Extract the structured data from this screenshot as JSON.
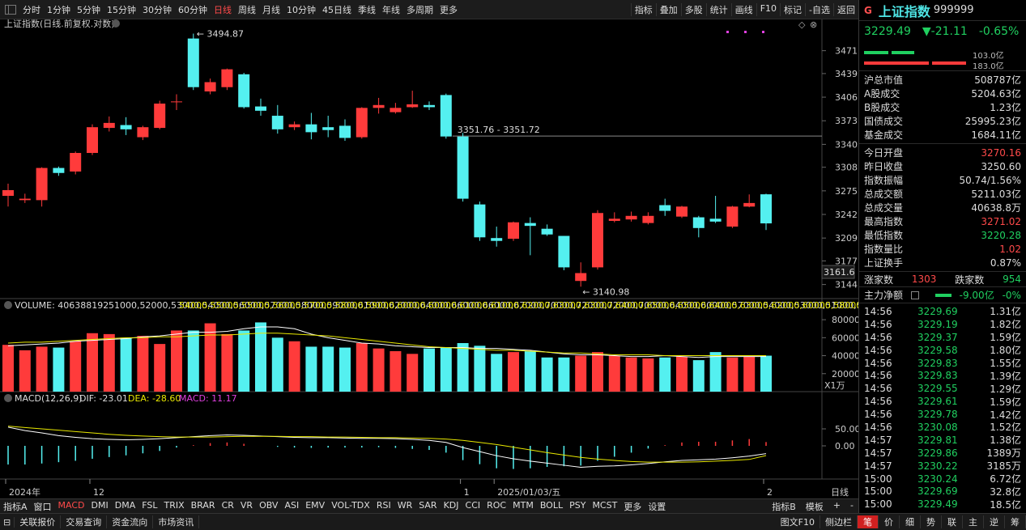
{
  "toolbar": {
    "periods": [
      "分时",
      "1分钟",
      "5分钟",
      "15分钟",
      "30分钟",
      "60分钟",
      "日线",
      "周线",
      "月线",
      "10分钟",
      "45日线",
      "季线",
      "年线",
      "多周期",
      "更多"
    ],
    "active": "日线",
    "right": [
      "指标",
      "叠加",
      "多股",
      "统计",
      "画线",
      "F10",
      "标记",
      "-自选",
      "返回"
    ]
  },
  "chart_title": "上证指数(日线.前复权.对数)",
  "right_panel": {
    "g": "G",
    "name": "上证指数",
    "code": "999999",
    "price": "3229.49",
    "change": "▼-21.11",
    "pct": "-0.65%",
    "bar1": "103.0亿",
    "bar2": "183.0亿",
    "stats": [
      {
        "k": "沪总市值",
        "v": "508787亿"
      },
      {
        "k": "A股成交",
        "v": "5204.63亿"
      },
      {
        "k": "B股成交",
        "v": "1.23亿"
      },
      {
        "k": "国债成交",
        "v": "25995.23亿"
      },
      {
        "k": "基金成交",
        "v": "1684.11亿"
      }
    ],
    "stats2": [
      {
        "k": "今日开盘",
        "v": "3270.16",
        "c": "#ff4a4a"
      },
      {
        "k": "昨日收盘",
        "v": "3250.60",
        "c": "#ddd"
      },
      {
        "k": "指数振幅",
        "v": "50.74/1.56%",
        "c": "#ddd"
      },
      {
        "k": "总成交额",
        "v": "5211.03亿",
        "c": "#ddd"
      },
      {
        "k": "总成交量",
        "v": "40638.8万",
        "c": "#ddd"
      },
      {
        "k": "最高指数",
        "v": "3271.02",
        "c": "#ff4a4a"
      },
      {
        "k": "最低指数",
        "v": "3220.28",
        "c": "#20d060"
      },
      {
        "k": "指数量比",
        "v": "1.02",
        "c": "#ff4a4a"
      },
      {
        "k": "上证换手",
        "v": "0.87%",
        "c": "#ddd"
      }
    ],
    "up_label": "涨家数",
    "up": "1303",
    "down_label": "跌家数",
    "down": "954",
    "flow_label": "主力净额",
    "flow": "-9.00亿",
    "flow_pct": "-0%",
    "ticks": [
      [
        "14:56",
        "3229.69",
        "1.31亿"
      ],
      [
        "14:56",
        "3229.19",
        "1.82亿"
      ],
      [
        "14:56",
        "3229.37",
        "1.59亿"
      ],
      [
        "14:56",
        "3229.58",
        "1.80亿"
      ],
      [
        "14:56",
        "3229.83",
        "1.55亿"
      ],
      [
        "14:56",
        "3229.83",
        "1.39亿"
      ],
      [
        "14:56",
        "3229.55",
        "1.29亿"
      ],
      [
        "14:56",
        "3229.61",
        "1.59亿"
      ],
      [
        "14:56",
        "3229.78",
        "1.42亿"
      ],
      [
        "14:56",
        "3230.08",
        "1.52亿"
      ],
      [
        "14:57",
        "3229.81",
        "1.38亿"
      ],
      [
        "14:57",
        "3229.86",
        "1389万"
      ],
      [
        "14:57",
        "3230.22",
        "3185万"
      ],
      [
        "15:00",
        "3230.24",
        "6.72亿"
      ],
      [
        "15:00",
        "3229.69",
        "32.8亿"
      ],
      [
        "15:00",
        "3229.49",
        "18.5亿"
      ]
    ]
  },
  "chart_data": {
    "type": "candlestick",
    "y_ticks": [
      "3471",
      "3439",
      "3406",
      "3373",
      "3340",
      "3308",
      "3275",
      "3242",
      "3209",
      "3177",
      "3144"
    ],
    "cur_label": "3161.6",
    "hline_label": "3351.76 - 3351.72",
    "annot_high": "3494.87",
    "annot_low": "3140.98",
    "candles": [
      [
        3268,
        3276,
        3253,
        3285
      ],
      [
        3262,
        3264,
        3258,
        3271
      ],
      [
        3262,
        3307,
        3253,
        3308
      ],
      [
        3307,
        3300,
        3296,
        3309
      ],
      [
        3302,
        3328,
        3298,
        3330
      ],
      [
        3328,
        3364,
        3325,
        3368
      ],
      [
        3363,
        3370,
        3358,
        3379
      ],
      [
        3367,
        3361,
        3353,
        3378
      ],
      [
        3350,
        3364,
        3346,
        3366
      ],
      [
        3363,
        3397,
        3361,
        3401
      ],
      [
        3400,
        3400,
        3388,
        3410
      ],
      [
        3488,
        3420,
        3416,
        3494.87
      ],
      [
        3414,
        3427,
        3410,
        3432
      ],
      [
        3420,
        3445,
        3416,
        3446
      ],
      [
        3438,
        3392,
        3390,
        3440
      ],
      [
        3393,
        3387,
        3380,
        3404
      ],
      [
        3380,
        3361,
        3355,
        3395
      ],
      [
        3364,
        3368,
        3360,
        3372
      ],
      [
        3368,
        3357,
        3347,
        3384
      ],
      [
        3364,
        3360,
        3350,
        3380
      ],
      [
        3366,
        3349,
        3345,
        3375
      ],
      [
        3350,
        3391,
        3348,
        3392
      ],
      [
        3391,
        3395,
        3383,
        3405
      ],
      [
        3385,
        3391,
        3383,
        3398
      ],
      [
        3392,
        3396,
        3391,
        3415
      ],
      [
        3395,
        3392,
        3388,
        3400
      ],
      [
        3409,
        3351,
        3348,
        3411
      ],
      [
        3351,
        3264,
        3260,
        3356
      ],
      [
        3256,
        3210,
        3205,
        3260
      ],
      [
        3209,
        3205,
        3197,
        3225
      ],
      [
        3208,
        3231,
        3205,
        3232
      ],
      [
        3230,
        3226,
        3185,
        3238
      ],
      [
        3222,
        3214,
        3212,
        3228
      ],
      [
        3212,
        3168,
        3164,
        3212
      ],
      [
        3149,
        3160,
        3140.98,
        3175
      ],
      [
        3168,
        3244,
        3165,
        3248
      ],
      [
        3233,
        3236,
        3231,
        3245
      ],
      [
        3235,
        3240,
        3232,
        3246
      ],
      [
        3230,
        3240,
        3228,
        3245
      ],
      [
        3255,
        3247,
        3240,
        3264
      ],
      [
        3239,
        3253,
        3237,
        3254
      ],
      [
        3238,
        3223,
        3210,
        3240
      ],
      [
        3236,
        3232,
        3230,
        3268
      ],
      [
        3225,
        3253,
        3223,
        3254
      ],
      [
        3253,
        3258,
        3252,
        3270
      ],
      [
        3270.16,
        3229.49,
        3220.28,
        3271.02
      ]
    ],
    "volume": {
      "title": "VOLUME: 406388192",
      "ma5": [
        51000,
        52000,
        53000,
        54000,
        56000,
        57000,
        58000,
        59000,
        61000,
        62000,
        64000,
        66000,
        66000,
        67000,
        70000,
        72000,
        72000,
        70000,
        64000,
        60000,
        57000,
        54000,
        53000,
        51000,
        50000,
        49000,
        49000,
        49000,
        48000,
        48000,
        47000,
        46000,
        44000,
        42000,
        41000,
        41000,
        40000,
        39000,
        39000,
        40000,
        39000,
        38000,
        39000,
        39000,
        39000,
        39000
      ],
      "ma10": [
        54000,
        55000,
        55000,
        56000,
        57000,
        58000,
        59000,
        60000,
        60000,
        61000,
        61000,
        62000,
        63000,
        63000,
        64000,
        65000,
        65000,
        64000,
        63000,
        62000,
        60000,
        58000,
        56000,
        54000,
        52000,
        50000,
        49000,
        48000,
        47000,
        46000,
        46000,
        45000,
        44000,
        43000,
        43000,
        42000,
        41000,
        41000,
        41000,
        40000,
        40000,
        40000,
        40000,
        40000,
        40000,
        40000
      ],
      "ticks": [
        "80000",
        "60000",
        "40000",
        "20000"
      ],
      "unit": "X1万",
      "values": [
        52000,
        46000,
        50000,
        49000,
        56000,
        65000,
        64000,
        60000,
        62000,
        53000,
        68000,
        68000,
        76000,
        64000,
        68000,
        77000,
        60000,
        56000,
        50000,
        50000,
        49000,
        54000,
        48000,
        45000,
        42000,
        48000,
        49000,
        54000,
        51000,
        42000,
        44000,
        45000,
        38000,
        38000,
        40000,
        44000,
        40000,
        38000,
        37000,
        38000,
        39000,
        35000,
        44000,
        38000,
        39000,
        40000
      ]
    },
    "macd": {
      "title": "MACD(12,26,9)",
      "dif": "DIF: -23.01",
      "dea": "DEA: -28.60",
      "macd": "MACD: 11.17",
      "ticks": [
        "50.00",
        "0.00"
      ],
      "dif_values": [
        55,
        45,
        38,
        30,
        25,
        21,
        19,
        18,
        19,
        21,
        24,
        27,
        30,
        32,
        31,
        29,
        27,
        25,
        24,
        24,
        23,
        22,
        22,
        21,
        19,
        16,
        10,
        -5,
        -17,
        -29,
        -38,
        -45,
        -51,
        -57,
        -63,
        -60,
        -59,
        -56,
        -52,
        -47,
        -43,
        -41,
        -39,
        -35,
        -30,
        -23
      ],
      "dea_values": [
        58,
        54,
        50,
        46,
        42,
        38,
        34,
        31,
        29,
        27,
        26,
        26,
        26,
        27,
        28,
        28,
        28,
        27,
        27,
        26,
        26,
        25,
        24,
        24,
        23,
        22,
        20,
        16,
        10,
        4,
        -4,
        -12,
        -20,
        -27,
        -34,
        -39,
        -43,
        -46,
        -48,
        -48,
        -48,
        -47,
        -45,
        -43,
        -40,
        -28.6
      ],
      "bars": [
        -55,
        -55,
        -52,
        -48,
        -44,
        -38,
        -33,
        -28,
        -22,
        -15,
        -5,
        2,
        8,
        10,
        6,
        0,
        -3,
        -5,
        -6,
        -5,
        -5,
        -5,
        -4,
        -6,
        -9,
        -12,
        -20,
        -42,
        -54,
        -66,
        -68,
        -66,
        -62,
        -60,
        -58,
        -44,
        -32,
        -20,
        -8,
        2,
        10,
        12,
        12,
        16,
        20,
        11.17
      ]
    },
    "x_labels": [
      {
        "i": 0,
        "t": "2024年"
      },
      {
        "i": 5,
        "t": "12"
      },
      {
        "i": 27,
        "t": "1"
      },
      {
        "i": 29,
        "t": "2025/01/03/五"
      },
      {
        "i": 45,
        "t": "2"
      }
    ],
    "period": "日线"
  },
  "indicators": [
    "指标A",
    "窗口",
    "MACD",
    "DMI",
    "DMA",
    "FSL",
    "TRIX",
    "BRAR",
    "CR",
    "VR",
    "OBV",
    "ASI",
    "EMV",
    "VOL-TDX",
    "RSI",
    "WR",
    "SAR",
    "KDJ",
    "CCI",
    "ROC",
    "MTM",
    "BOLL",
    "PSY",
    "MCST",
    "更多",
    "设置"
  ],
  "indicators_active": "MACD",
  "ind_right": [
    "指标B",
    "模板",
    "+",
    "-"
  ],
  "bottom_tabs": [
    "关联报价",
    "交易查询",
    "资金流向",
    "市场资讯"
  ],
  "bottom_right": [
    "图文F10",
    "侧边栏"
  ],
  "bottom_icons": [
    "笔",
    "价",
    "细",
    "势",
    "联",
    "主",
    "逆",
    "筹"
  ]
}
